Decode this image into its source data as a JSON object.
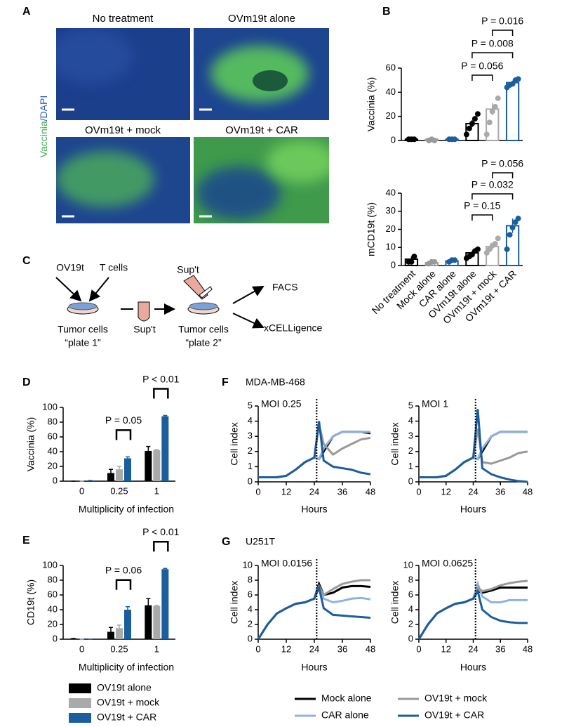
{
  "panel_labels": [
    "A",
    "B",
    "C",
    "D",
    "E",
    "F",
    "G"
  ],
  "panel_a": {
    "y_label": [
      "Vaccinia",
      "/DAPI"
    ],
    "images": [
      "No treatment",
      "OVm19t alone",
      "OVm19t + mock",
      "OVm19t + CAR"
    ]
  },
  "panel_c": {
    "virus": "OV19t",
    "t_cells": "T cells",
    "cells_1": "Tumor cells",
    "plate_1": "“plate 1”",
    "sup_1": "Sup't",
    "sup_2": "Sup't",
    "cells_2": "Tumor cells",
    "plate_2": "“plate 2”",
    "facs": "FACS",
    "xcell": "xCELLigence"
  },
  "line_groups": [
    "MDA-MB-468",
    "U251T"
  ],
  "bar_legend": [
    {
      "name": "OV19t alone",
      "color": "#000000"
    },
    {
      "name": "OV19t + mock",
      "color": "#aaaaaa"
    },
    {
      "name": "OV19t + CAR",
      "color": "#1b5e9e"
    }
  ],
  "line_legend": [
    {
      "name": "Mock alone",
      "color": "#000000"
    },
    {
      "name": "CAR alone",
      "color": "#8fb3df"
    },
    {
      "name": "OV19t + mock",
      "color": "#999999"
    },
    {
      "name": "OV19t + CAR",
      "color": "#1b5e9e"
    }
  ],
  "chart_data": [
    {
      "type": "dot_bar",
      "y_label": "Vaccinia (%)",
      "ylim": [
        0,
        60
      ],
      "yticks": [
        0,
        20,
        40,
        60
      ],
      "colors": [
        "#000000",
        "#999999",
        "#1b5e9e",
        "#000000",
        "#aaaaaa",
        "#1b5e9e"
      ],
      "values": [
        1,
        1,
        1,
        14,
        26,
        48
      ],
      "errors": [
        0.5,
        0.3,
        0.5,
        3,
        5,
        1.5
      ],
      "points": [
        [
          1,
          1,
          1
        ],
        [
          0,
          1,
          0
        ],
        [
          1,
          1,
          1
        ],
        [
          5,
          10,
          14,
          18,
          22
        ],
        [
          5,
          15,
          24,
          28,
          35
        ],
        [
          44,
          46,
          47,
          50,
          51
        ]
      ],
      "annotations": [
        {
          "text": "P = 0.016",
          "from": "OVm19t + mock",
          "to": "OVm19t + CAR"
        },
        {
          "text": "P = 0.008",
          "from": "OVm19t alone",
          "to": "OVm19t + CAR"
        },
        {
          "text": "P = 0.056",
          "from": "OVm19t alone",
          "to": "OVm19t + mock"
        }
      ]
    },
    {
      "type": "dot_bar",
      "y_label": "mCD19t (%)",
      "ylim": [
        0,
        40
      ],
      "yticks": [
        0,
        10,
        20,
        30,
        40
      ],
      "categories": [
        "No treatment",
        "Mock alone",
        "CAR alone",
        "OVm19t alone",
        "OVm19t + mock",
        "OVm19t + CAR"
      ],
      "colors": [
        "#000000",
        "#999999",
        "#1b5e9e",
        "#000000",
        "#aaaaaa",
        "#1b5e9e"
      ],
      "values": [
        3.5,
        1.5,
        2.5,
        7,
        10.5,
        22
      ],
      "errors": [
        1.5,
        0.5,
        0.5,
        1,
        1.5,
        4
      ],
      "points": [
        [
          2,
          2,
          5
        ],
        [
          1,
          2,
          2
        ],
        [
          2,
          3,
          3
        ],
        [
          4,
          5,
          6,
          8,
          9
        ],
        [
          7,
          9,
          11,
          12,
          15
        ],
        [
          9,
          17,
          21,
          24,
          26
        ]
      ],
      "annotations": [
        {
          "text": "P = 0.056",
          "from": "OVm19t + mock",
          "to": "OVm19t + CAR"
        },
        {
          "text": "P = 0.032",
          "from": "OVm19t alone",
          "to": "OVm19t + CAR"
        },
        {
          "text": "P = 0.15",
          "from": "OVm19t alone",
          "to": "OVm19t + mock"
        }
      ]
    },
    {
      "type": "grouped_bar",
      "y_label": "Vaccinia (%)",
      "x_label": "Multiplicity of infection",
      "ylim": [
        0,
        100
      ],
      "yticks": [
        0,
        20,
        40,
        60,
        80,
        100
      ],
      "categories": [
        "0",
        "0.25",
        "1"
      ],
      "series": [
        {
          "values": [
            0,
            11,
            41
          ],
          "errors": [
            0,
            5,
            6
          ]
        },
        {
          "values": [
            0,
            16,
            42
          ],
          "errors": [
            0,
            4,
            1
          ]
        },
        {
          "values": [
            1,
            31,
            88
          ],
          "errors": [
            0,
            2,
            1
          ]
        }
      ],
      "annotations": [
        {
          "text": "P = 0.05",
          "category": "0.25",
          "between": [
            "OV19t + mock",
            "OV19t + CAR"
          ]
        },
        {
          "text": "P < 0.01",
          "category": "1",
          "between": [
            "OV19t + mock",
            "OV19t + CAR"
          ]
        }
      ]
    },
    {
      "type": "grouped_bar",
      "y_label": "CD19t (%)",
      "x_label": "Multiplicity of infection",
      "ylim": [
        0,
        100
      ],
      "yticks": [
        0,
        20,
        40,
        60,
        80,
        100
      ],
      "categories": [
        "0",
        "0.25",
        "1"
      ],
      "series": [
        {
          "values": [
            1,
            10,
            46
          ],
          "errors": [
            0,
            6,
            9
          ]
        },
        {
          "values": [
            0,
            15,
            45
          ],
          "errors": [
            0,
            4,
            1
          ]
        },
        {
          "values": [
            0,
            40,
            95
          ],
          "errors": [
            0,
            4,
            1
          ]
        }
      ],
      "annotations": [
        {
          "text": "P = 0.06",
          "category": "0.25",
          "between": [
            "OV19t + mock",
            "OV19t + CAR"
          ]
        },
        {
          "text": "P < 0.01",
          "category": "1",
          "between": [
            "OV19t + mock",
            "OV19t + CAR"
          ]
        }
      ]
    },
    {
      "type": "line",
      "subtitle": "MOI 0.25",
      "y_label": "Cell index",
      "x_label": "Hours",
      "xlim": [
        0,
        48
      ],
      "xticks": [
        0,
        12,
        24,
        36,
        48
      ],
      "ylim": [
        0,
        5
      ],
      "yticks": [
        0,
        1,
        2,
        3,
        4,
        5
      ],
      "vline": 25,
      "x": [
        0,
        4,
        8,
        12,
        16,
        20,
        24,
        26,
        28,
        32,
        36,
        40,
        44,
        48
      ],
      "series": [
        {
          "values": [
            0.3,
            0.3,
            0.3,
            0.4,
            0.8,
            1.3,
            1.6,
            1.5,
            2.0,
            3.0,
            3.3,
            3.3,
            3.3,
            3.2
          ]
        },
        {
          "values": [
            0.3,
            0.3,
            0.3,
            0.4,
            0.8,
            1.3,
            1.6,
            1.5,
            2.2,
            3.0,
            3.3,
            3.3,
            3.3,
            3.3
          ]
        },
        {
          "values": [
            0.3,
            0.3,
            0.3,
            0.4,
            0.8,
            1.3,
            1.6,
            3.8,
            2.5,
            1.8,
            2.2,
            2.5,
            2.8,
            2.9
          ]
        },
        {
          "values": [
            0.3,
            0.3,
            0.3,
            0.4,
            0.8,
            1.3,
            1.6,
            4.0,
            1.4,
            1.0,
            0.9,
            0.8,
            0.6,
            0.5
          ]
        }
      ]
    },
    {
      "type": "line",
      "subtitle": "MOI 1",
      "y_label": "Cell index",
      "x_label": "Hours",
      "xlim": [
        0,
        48
      ],
      "xticks": [
        0,
        12,
        24,
        36,
        48
      ],
      "ylim": [
        0,
        5
      ],
      "yticks": [
        0,
        1,
        2,
        3,
        4,
        5
      ],
      "vline": 25,
      "x": [
        0,
        4,
        8,
        12,
        16,
        20,
        24,
        26,
        28,
        32,
        36,
        40,
        44,
        48
      ],
      "series": [
        {
          "values": [
            0.3,
            0.3,
            0.3,
            0.4,
            0.8,
            1.3,
            1.6,
            1.5,
            2.0,
            3.0,
            3.3,
            3.3,
            3.3,
            3.3
          ]
        },
        {
          "values": [
            0.3,
            0.3,
            0.3,
            0.4,
            0.8,
            1.3,
            1.6,
            1.5,
            2.2,
            3.0,
            3.3,
            3.3,
            3.3,
            3.3
          ]
        },
        {
          "values": [
            0.3,
            0.3,
            0.3,
            0.4,
            0.8,
            1.3,
            1.6,
            3.5,
            1.3,
            1.2,
            1.4,
            1.6,
            1.9,
            2.0
          ]
        },
        {
          "values": [
            0.3,
            0.3,
            0.3,
            0.4,
            0.8,
            1.3,
            1.6,
            4.8,
            0.9,
            0.5,
            0.3,
            0.15,
            0.05,
            0.0
          ]
        }
      ]
    },
    {
      "type": "line",
      "subtitle": "MOI 0.0156",
      "y_label": "Cell index",
      "x_label": "Hours",
      "xlim": [
        0,
        48
      ],
      "xticks": [
        0,
        12,
        24,
        36,
        48
      ],
      "ylim": [
        0,
        10
      ],
      "yticks": [
        0,
        2,
        4,
        6,
        8,
        10
      ],
      "vline": 25,
      "x": [
        0,
        4,
        8,
        12,
        16,
        20,
        24,
        26,
        28,
        32,
        36,
        40,
        44,
        48
      ],
      "series": [
        {
          "values": [
            0,
            2.0,
            3.5,
            4.2,
            4.8,
            5.0,
            5.5,
            7.5,
            6.0,
            6.3,
            7.0,
            7.2,
            7.2,
            7.1
          ]
        },
        {
          "values": [
            0,
            2.0,
            3.5,
            4.2,
            4.8,
            5.0,
            5.5,
            7.0,
            5.5,
            5.0,
            5.2,
            5.5,
            5.6,
            5.4
          ]
        },
        {
          "values": [
            0,
            2.0,
            3.5,
            4.2,
            4.8,
            5.0,
            5.5,
            7.2,
            6.0,
            6.8,
            7.5,
            7.8,
            8.0,
            8.0
          ]
        },
        {
          "values": [
            0,
            2.0,
            3.5,
            4.2,
            4.8,
            5.0,
            5.5,
            7.0,
            4.2,
            3.3,
            3.2,
            3.1,
            3.0,
            2.9
          ]
        }
      ]
    },
    {
      "type": "line",
      "subtitle": "MOI 0.0625",
      "y_label": "Cell index",
      "x_label": "Hours",
      "xlim": [
        0,
        48
      ],
      "xticks": [
        0,
        12,
        24,
        36,
        48
      ],
      "ylim": [
        0,
        10
      ],
      "yticks": [
        0,
        2,
        4,
        6,
        8,
        10
      ],
      "vline": 25,
      "x": [
        0,
        4,
        8,
        12,
        16,
        20,
        24,
        26,
        28,
        32,
        36,
        40,
        44,
        48
      ],
      "series": [
        {
          "values": [
            0,
            2.0,
            3.5,
            4.2,
            4.8,
            5.0,
            5.5,
            6.5,
            6.3,
            6.6,
            7.0,
            7.0,
            7.0,
            7.0
          ]
        },
        {
          "values": [
            0,
            2.0,
            3.5,
            4.2,
            4.8,
            5.0,
            5.5,
            7.5,
            5.8,
            5.0,
            5.0,
            5.3,
            5.3,
            5.3
          ]
        },
        {
          "values": [
            0,
            2.0,
            3.5,
            4.2,
            4.8,
            5.0,
            5.5,
            7.0,
            6.5,
            6.8,
            7.3,
            7.6,
            7.8,
            7.9
          ]
        },
        {
          "values": [
            0,
            2.0,
            3.5,
            4.2,
            4.8,
            5.0,
            5.5,
            6.5,
            4.0,
            3.0,
            2.5,
            2.3,
            2.2,
            2.2
          ]
        }
      ]
    }
  ]
}
